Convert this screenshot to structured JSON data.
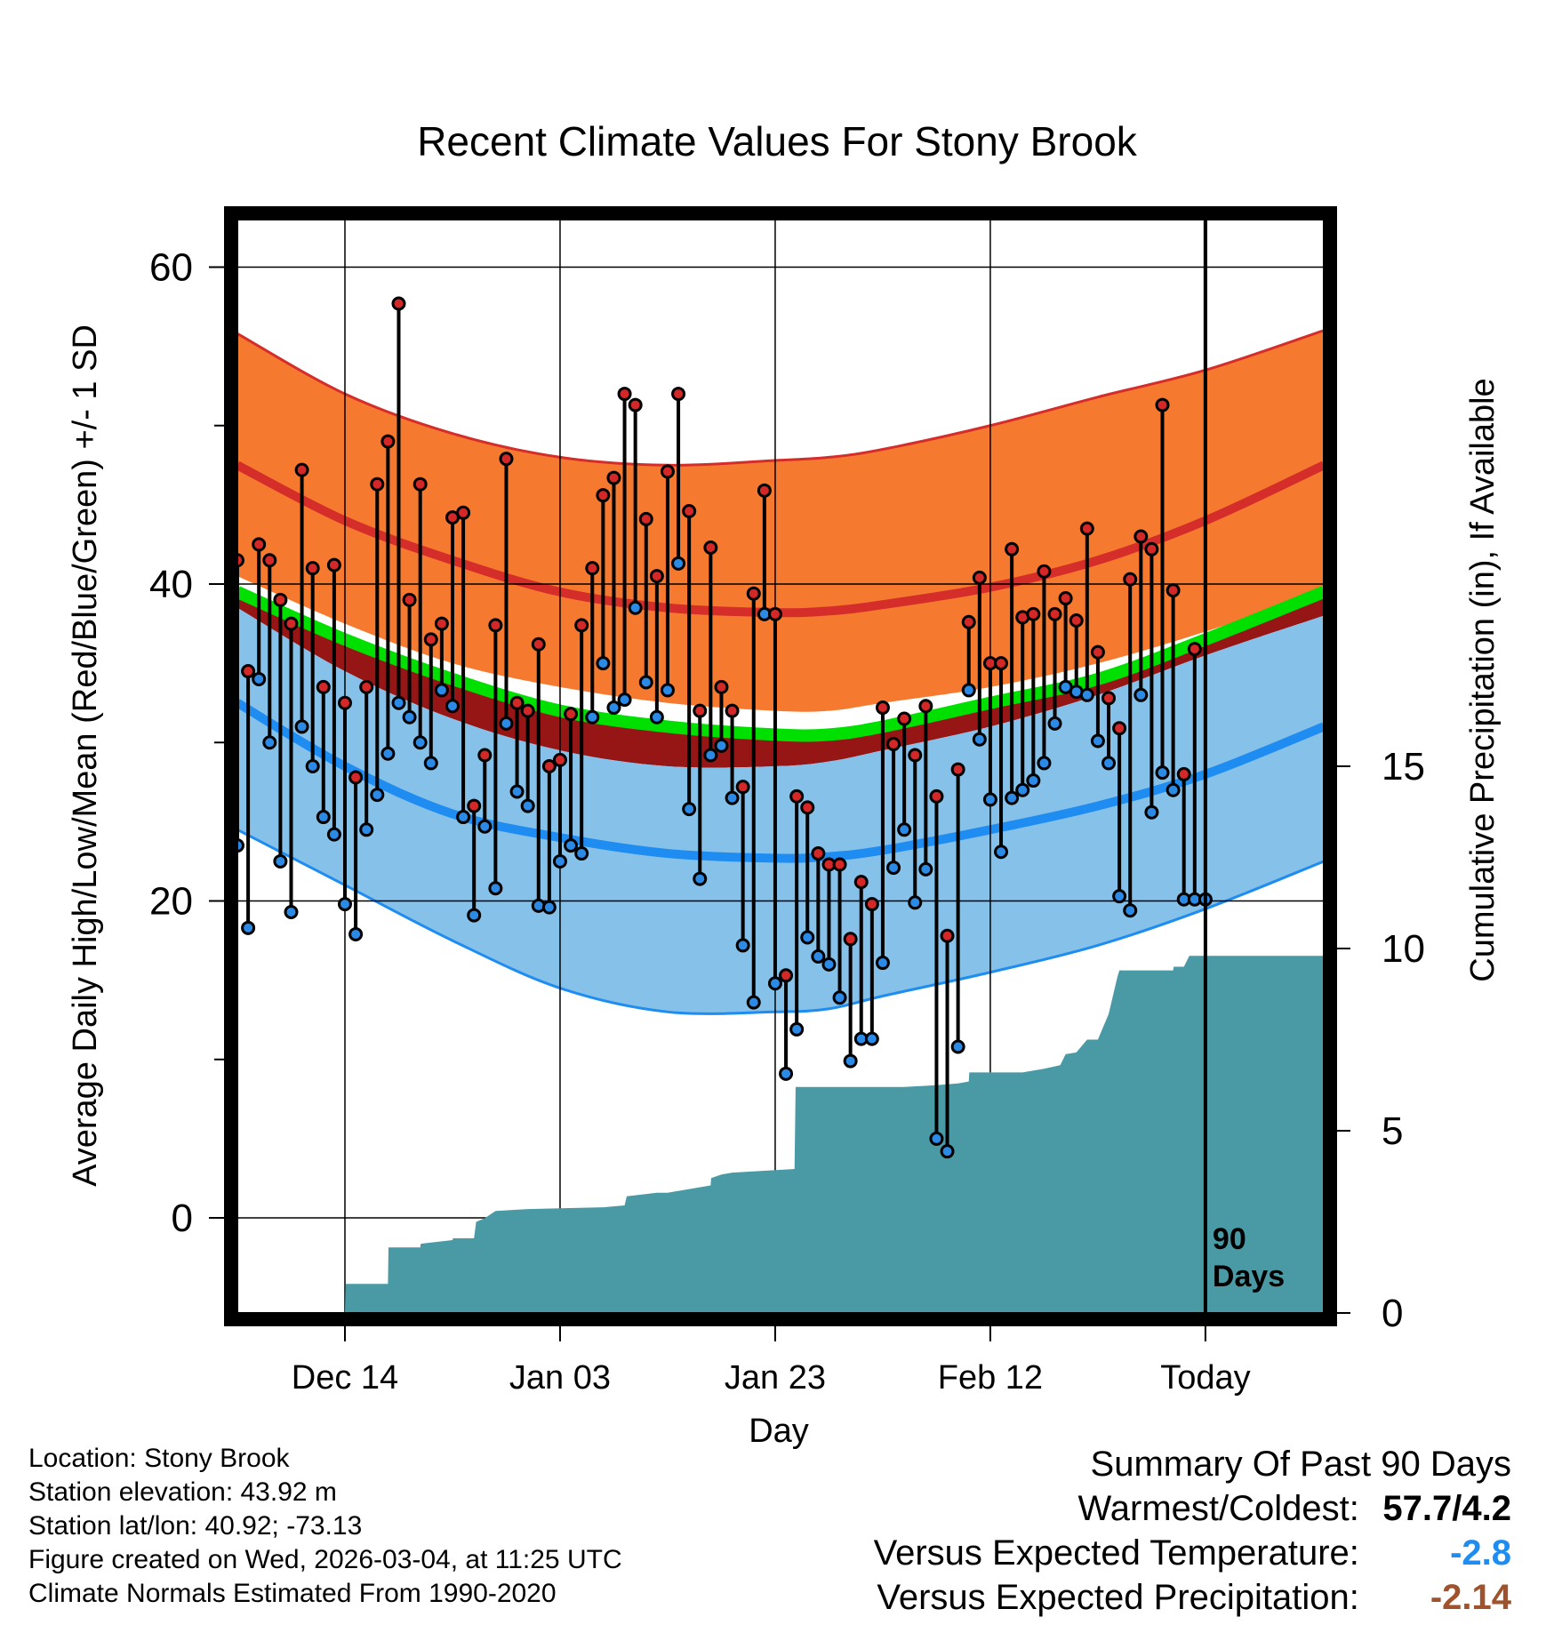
{
  "colors": {
    "normal_high_band": "#f57a30",
    "normal_high_line": "#d42d2a",
    "normal_mean_line": "#00e000",
    "normal_low_band": "#85c1e9",
    "normal_low_line": "#1e8cf0",
    "below_mean_band": "#961515",
    "precip_fill": "#4a9aa5",
    "high_marker": "#d42828",
    "low_marker": "#2a8ae6",
    "warm_value": "#000000",
    "temp_departure": "#1e8cf0",
    "precip_departure": "#a0522d"
  },
  "chart_data": {
    "type": "line",
    "title": "Recent Climate Values For Stony Brook",
    "xlabel": "Day",
    "ylabel": "Average Daily High/Low/Mean (Red/Blue/Green) +/- 1 SD",
    "y2label": "Cumulative Precipitation (in), If Available",
    "xlim": [
      0,
      101
    ],
    "ylim": [
      -6,
      63
    ],
    "y2lim": [
      0,
      30
    ],
    "x_ticks": [
      {
        "x": 10,
        "label": "Dec 14"
      },
      {
        "x": 30,
        "label": "Jan 03"
      },
      {
        "x": 50,
        "label": "Jan 23"
      },
      {
        "x": 70,
        "label": "Feb 12"
      },
      {
        "x": 90,
        "label": "Today"
      }
    ],
    "y_ticks": [
      {
        "v": 0,
        "label": "0"
      },
      {
        "v": 20,
        "label": "20"
      },
      {
        "v": 40,
        "label": "40"
      },
      {
        "v": 60,
        "label": "60"
      }
    ],
    "y_minor_ticks": [
      10,
      30,
      50
    ],
    "y2_ticks": [
      {
        "v": 0,
        "label": "0"
      },
      {
        "v": 5,
        "label": "5"
      },
      {
        "v": 10,
        "label": "10"
      },
      {
        "v": 15,
        "label": "15"
      }
    ],
    "today_x": 90,
    "window_label_line1": "90",
    "window_label_line2": "Days",
    "normals": {
      "x": [
        0,
        10,
        20,
        30,
        40,
        50,
        55,
        60,
        70,
        80,
        90,
        101
      ],
      "high_plus_sd": [
        55.8,
        52.0,
        49.5,
        48.0,
        47.5,
        47.8,
        48.0,
        48.5,
        50.0,
        51.8,
        53.5,
        56.0
      ],
      "high": [
        47.5,
        44.0,
        41.5,
        39.5,
        38.5,
        38.2,
        38.3,
        38.7,
        39.8,
        41.5,
        44.0,
        47.5
      ],
      "mean": [
        39.5,
        36.5,
        34.0,
        32.0,
        31.0,
        30.5,
        30.5,
        31.0,
        32.5,
        34.0,
        36.5,
        39.5
      ],
      "high_minus_sd": [
        40.5,
        37.5,
        35.0,
        33.5,
        32.5,
        32.0,
        32.0,
        32.5,
        33.5,
        35.0,
        37.0,
        39.5
      ],
      "mean_minus_sd": [
        38.5,
        34.5,
        31.5,
        29.5,
        28.5,
        28.5,
        28.8,
        29.5,
        31.0,
        33.0,
        35.5,
        38.0
      ],
      "low_plus_sd": [
        38.5,
        34.5,
        31.5,
        29.5,
        28.5,
        28.5,
        28.8,
        29.5,
        31.0,
        33.0,
        35.5,
        38.0
      ],
      "low": [
        32.5,
        28.5,
        25.5,
        24.0,
        23.0,
        22.7,
        22.8,
        23.2,
        24.5,
        26.0,
        28.0,
        31.0
      ],
      "low_minus_sd": [
        24.5,
        21.0,
        17.5,
        14.5,
        13.0,
        13.0,
        13.2,
        14.0,
        15.5,
        17.2,
        19.5,
        22.5
      ]
    },
    "daily_x": [
      0,
      1,
      2,
      3,
      4,
      5,
      6,
      7,
      8,
      9,
      10,
      11,
      12,
      13,
      14,
      15,
      16,
      17,
      18,
      19,
      20,
      21,
      22,
      23,
      24,
      25,
      26,
      27,
      28,
      29,
      30,
      31,
      32,
      33,
      34,
      35,
      36,
      37,
      38,
      39,
      40,
      41,
      42,
      43,
      44,
      45,
      46,
      47,
      48,
      49,
      50,
      51,
      52,
      53,
      54,
      55,
      56,
      57,
      58,
      59,
      60,
      61,
      62,
      63,
      64,
      65,
      66,
      67,
      68,
      69,
      70,
      71,
      72,
      73,
      74,
      75,
      76,
      77,
      78,
      79,
      80,
      81,
      82,
      83,
      84,
      85,
      86,
      87,
      88,
      89,
      90
    ],
    "daily_high": [
      41.5,
      34.5,
      42.5,
      41.5,
      39,
      37.5,
      47.2,
      41,
      33.5,
      41.2,
      32.5,
      27.8,
      33.5,
      46.3,
      49,
      57.7,
      39,
      46.3,
      36.5,
      37.5,
      44.2,
      44.5,
      26,
      29.2,
      37.4,
      47.9,
      32.5,
      32,
      36.2,
      28.5,
      28.9,
      31.8,
      37.4,
      41,
      45.6,
      46.7,
      52,
      51.3,
      44.1,
      40.5,
      47.1,
      52,
      44.6,
      32,
      42.3,
      33.5,
      32,
      27.2,
      39.4,
      45.9,
      38.1,
      15.3,
      26.6,
      25.9,
      23,
      22.3,
      22.3,
      17.6,
      21.2,
      19.8,
      32.2,
      29.9,
      31.5,
      29.2,
      32.3,
      26.6,
      17.8,
      28.3,
      37.6,
      40.4,
      35,
      35,
      42.2,
      37.9,
      38.1,
      40.8,
      38.1,
      39.1,
      37.7,
      43.5,
      35.7,
      32.8,
      30.9,
      40.3,
      43,
      42.2,
      51.3,
      39.6,
      28,
      35.9
    ],
    "daily_low": [
      23.5,
      18.3,
      34,
      30,
      22.5,
      19.3,
      31,
      28.5,
      25.3,
      24.2,
      19.8,
      17.9,
      24.5,
      26.7,
      29.3,
      32.5,
      31.6,
      30,
      28.7,
      33.3,
      32.3,
      25.3,
      19.1,
      24.7,
      20.8,
      31.2,
      26.9,
      26,
      19.7,
      19.6,
      22.5,
      23.5,
      23,
      31.6,
      35,
      32.2,
      32.7,
      38.5,
      33.8,
      31.6,
      33.3,
      41.3,
      25.8,
      21.4,
      29.2,
      29.8,
      26.5,
      17.2,
      13.6,
      38.1,
      14.8,
      9.1,
      11.9,
      17.7,
      16.5,
      16,
      13.9,
      9.9,
      11.3,
      11.3,
      16.1,
      22.1,
      24.5,
      19.9,
      22,
      5.0,
      4.2,
      10.8,
      33.3,
      30.2,
      26.4,
      23.1,
      26.5,
      27,
      27.6,
      28.7,
      31.2,
      33.5,
      33.2,
      33,
      30.1,
      28.7,
      20.3,
      19.4,
      33,
      25.6,
      28.1,
      27,
      20.1,
      20.1,
      20.1
    ],
    "precip_cumulative": {
      "x": [
        0,
        10,
        10.05,
        14,
        14.05,
        17,
        17.05,
        20,
        20.05,
        22,
        22.2,
        23,
        24,
        27,
        34,
        36,
        36.2,
        39,
        40,
        44,
        44.05,
        45,
        46,
        51.8,
        51.9,
        55,
        57,
        62,
        65,
        67,
        68,
        68.05,
        73,
        75,
        76.5,
        77,
        78,
        79,
        80,
        81,
        81.8,
        82,
        84,
        87,
        87.05,
        88,
        88.5,
        101
      ],
      "y": [
        0,
        0,
        0.8,
        0.8,
        1.8,
        1.8,
        1.9,
        2.0,
        2.05,
        2.05,
        2.5,
        2.6,
        2.8,
        2.85,
        2.9,
        2.95,
        3.2,
        3.3,
        3.3,
        3.5,
        3.7,
        3.8,
        3.85,
        3.95,
        6.2,
        6.2,
        6.2,
        6.2,
        6.25,
        6.3,
        6.35,
        6.6,
        6.6,
        6.7,
        6.8,
        7.1,
        7.15,
        7.5,
        7.5,
        8.2,
        9.2,
        9.4,
        9.4,
        9.4,
        9.5,
        9.5,
        9.8,
        9.8
      ]
    }
  },
  "footer": {
    "location": "Location: Stony Brook",
    "elevation": "Station elevation: 43.92 m",
    "latlon": "Station lat/lon: 40.92; -73.13",
    "created": "Figure created on Wed, 2026-03-04, at 11:25 UTC",
    "normals": "Climate Normals Estimated From 1990-2020"
  },
  "summary": {
    "title": "Summary Of Past 90 Days",
    "warm_cold_label": "Warmest/Coldest:",
    "warm_cold_value": "57.7/4.2",
    "temp_label": "Versus Expected Temperature:",
    "temp_value": "-2.8",
    "precip_label": "Versus Expected Precipitation:",
    "precip_value": "-2.14"
  }
}
